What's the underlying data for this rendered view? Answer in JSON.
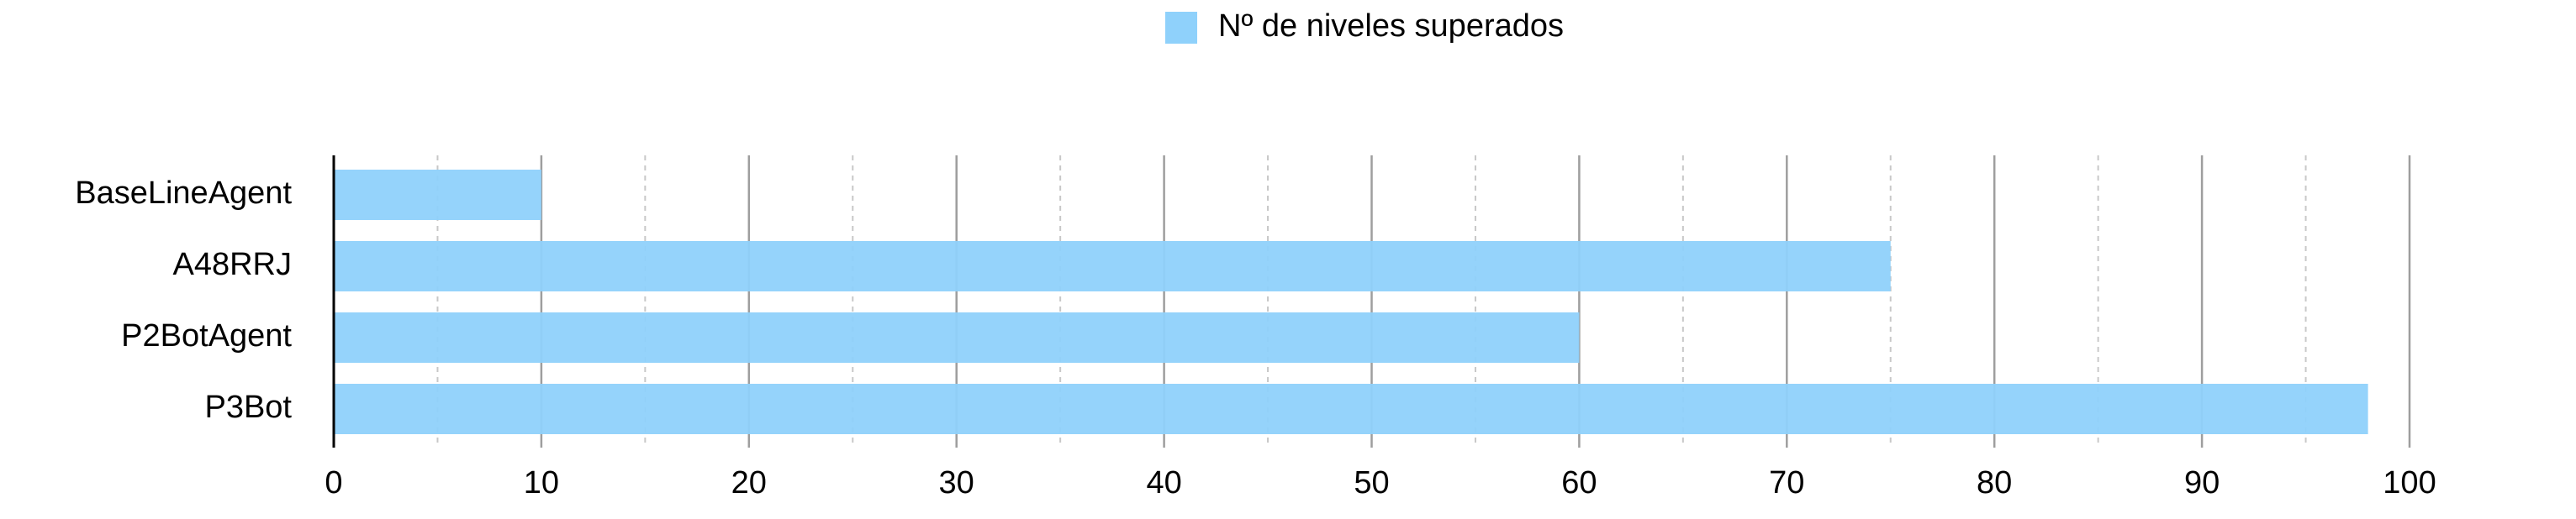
{
  "chart_data": {
    "type": "bar",
    "orientation": "horizontal",
    "categories": [
      "BaseLineAgent",
      "A48RRJ",
      "P2BotAgent",
      "P3Bot"
    ],
    "series": [
      {
        "name": "Nº de niveles superados",
        "values": [
          10,
          75,
          60,
          98
        ],
        "color": "#8FD1FB"
      }
    ],
    "xlim": [
      0,
      100
    ],
    "x_ticks": [
      0,
      10,
      20,
      30,
      40,
      50,
      60,
      70,
      80,
      90,
      100
    ],
    "x_tick_labels": [
      "0",
      "10",
      "20",
      "30",
      "40",
      "50",
      "60",
      "70",
      "80",
      "90",
      "100"
    ],
    "grid": {
      "major": true,
      "minor_dashed": true,
      "major_color": "#9E9E9E",
      "minor_color": "#C8C8C8"
    },
    "legend": "top-center",
    "title": "",
    "xlabel": "",
    "ylabel": ""
  }
}
